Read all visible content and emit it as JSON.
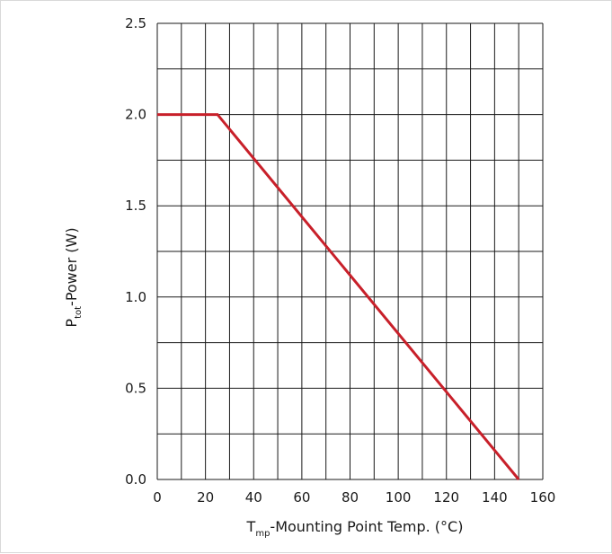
{
  "chart_data": {
    "type": "line",
    "title": "",
    "xlabel": {
      "main": "T",
      "sub": "mp",
      "rest": "-Mounting Point Temp. (°C)"
    },
    "ylabel": {
      "main": "P",
      "sub": "tot",
      "rest": "-Power (W)"
    },
    "xlim": [
      0,
      160
    ],
    "ylim": [
      0,
      2.5
    ],
    "x_ticks": [
      "0",
      "20",
      "40",
      "60",
      "80",
      "100",
      "120",
      "140",
      "160"
    ],
    "y_ticks": [
      "0.0",
      "0.5",
      "1.0",
      "1.5",
      "2.0",
      "2.5"
    ],
    "x_grid_step": 10,
    "y_grid_step": 0.25,
    "grid": true,
    "line_color": "#c8202a",
    "series": [
      {
        "x": [
          0,
          25,
          150
        ],
        "y": [
          2.0,
          2.0,
          0.0
        ]
      }
    ]
  }
}
